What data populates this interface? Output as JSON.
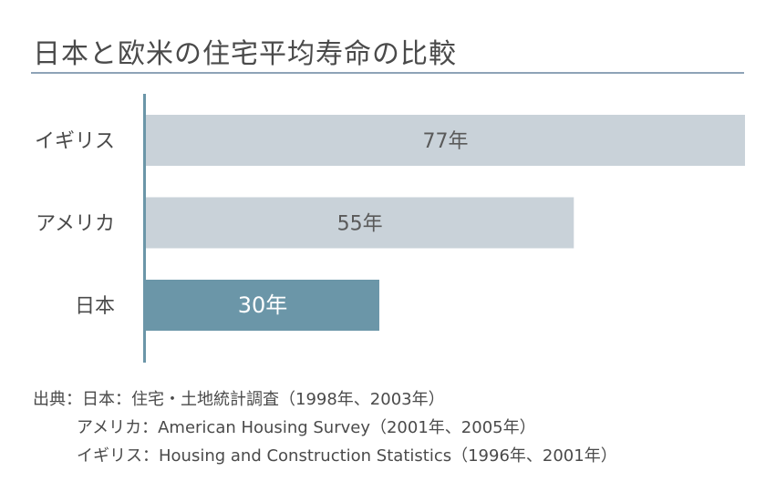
{
  "title": "日本と欧米の住宅平均寿命の比較",
  "chart_data": {
    "type": "bar",
    "orientation": "horizontal",
    "categories": [
      "イギリス",
      "アメリカ",
      "日本"
    ],
    "values": [
      77,
      55,
      30
    ],
    "value_labels": [
      "77年",
      "55年",
      "30年"
    ],
    "unit": "年",
    "xlim": [
      0,
      77
    ],
    "grid": false,
    "colors": {
      "default": "#c9d2d9",
      "highlight": "#6b96a8",
      "axis": "#6b96a8"
    },
    "highlight_category": "日本"
  },
  "sources": [
    "出典：日本：住宅・土地統計調査（1998年、2003年）",
    "アメリカ：American Housing Survey（2001年、2005年）",
    "イギリス：Housing and Construction Statistics（1996年、2001年）"
  ]
}
